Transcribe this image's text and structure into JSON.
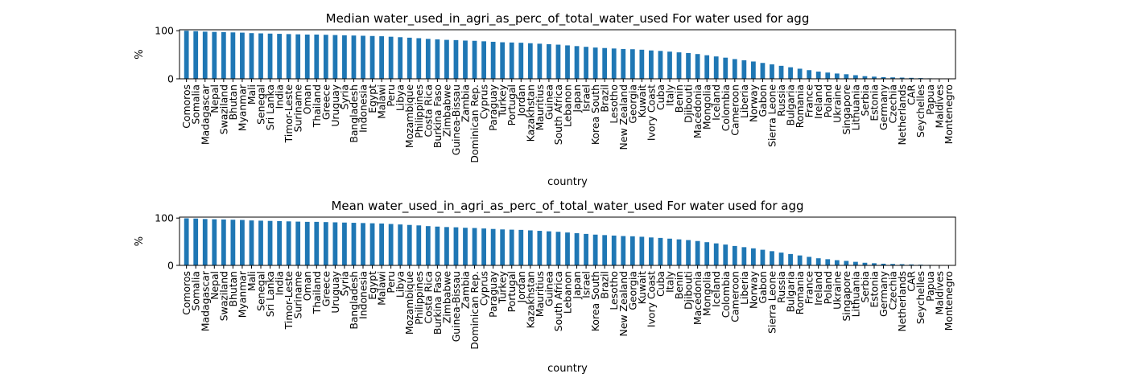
{
  "chart_data": [
    {
      "type": "bar",
      "title": "Median water_used_in_agri_as_perc_of_total_water_used For water used for agg",
      "xlabel": "country",
      "ylabel": "%",
      "ylim": [
        0,
        102
      ],
      "yticks": [
        0,
        100
      ],
      "legend": "none",
      "grid": false,
      "bar_color": "#1f77b4",
      "categories": [
        "Comoros",
        "Somalia",
        "Madagascar",
        "Nepal",
        "Swaziland",
        "Bhutan",
        "Myanmar",
        "Mali",
        "Senegal",
        "Sri Lanka",
        "India",
        "Timor-Leste",
        "Suriname",
        "Oman",
        "Thailand",
        "Greece",
        "Uruguay",
        "Syria",
        "Bangladesh",
        "Indonesia",
        "Egypt",
        "Malawi",
        "Peru",
        "Libya",
        "Mozambique",
        "Philippines",
        "Costa Rica",
        "Burkina Faso",
        "Zimbabwe",
        "Guinea-Bissau",
        "Zambia",
        "Dominican Rep.",
        "Cyprus",
        "Paraguay",
        "Turkey",
        "Portugal",
        "Jordan",
        "Kazakhstan",
        "Mauritius",
        "Guinea",
        "South Africa",
        "Lebanon",
        "Japan",
        "Israel",
        "Korea South",
        "Brazil",
        "Lesotho",
        "New Zealand",
        "Georgia",
        "Kuwait",
        "Ivory Coast",
        "Cuba",
        "Italy",
        "Benin",
        "Djibouti",
        "Macedonia",
        "Mongolia",
        "Iceland",
        "Colombia",
        "Cameroon",
        "Liberia",
        "Norway",
        "Gabon",
        "Sierra Leone",
        "Russia",
        "Bulgaria",
        "Romania",
        "France",
        "Ireland",
        "Poland",
        "Ukraine",
        "Singapore",
        "Lithuania",
        "Serbia",
        "Estonia",
        "Germany",
        "Czechia",
        "Netherlands",
        "CAR",
        "Seychelles",
        "Papua",
        "Maldives",
        "Montenegro"
      ],
      "values": [
        100,
        99,
        98,
        97.5,
        97,
        96.5,
        96,
        95,
        94.5,
        94,
        93.5,
        93,
        92.5,
        92,
        92,
        91.5,
        91,
        90.5,
        90,
        89.5,
        89,
        88.5,
        87.5,
        86.5,
        85.5,
        84.5,
        83,
        82,
        81,
        80.5,
        79.5,
        79,
        78,
        77,
        76,
        75.5,
        75,
        74,
        73,
        72,
        71,
        69.5,
        68,
        66.5,
        65,
        64,
        63,
        62,
        61.5,
        60.5,
        59,
        58,
        56.5,
        55,
        53.5,
        51.5,
        49,
        46.5,
        44,
        41,
        38.5,
        36,
        33,
        30,
        27,
        24,
        21,
        18,
        15,
        13,
        11,
        9.5,
        7.5,
        5.5,
        4.5,
        3.5,
        3,
        2.5,
        2,
        1.5,
        1,
        0.5,
        0.2
      ]
    },
    {
      "type": "bar",
      "title": "Mean water_used_in_agri_as_perc_of_total_water_used For water used for agg",
      "xlabel": "country",
      "ylabel": "%",
      "ylim": [
        0,
        102
      ],
      "yticks": [
        0,
        100
      ],
      "legend": "none",
      "grid": false,
      "bar_color": "#1f77b4",
      "categories": [
        "Comoros",
        "Somalia",
        "Madagascar",
        "Nepal",
        "Swaziland",
        "Bhutan",
        "Myanmar",
        "Mali",
        "Senegal",
        "Sri Lanka",
        "India",
        "Timor-Leste",
        "Suriname",
        "Oman",
        "Thailand",
        "Greece",
        "Uruguay",
        "Syria",
        "Bangladesh",
        "Indonesia",
        "Egypt",
        "Malawi",
        "Peru",
        "Libya",
        "Mozambique",
        "Philippines",
        "Costa Rica",
        "Burkina Faso",
        "Zimbabwe",
        "Guinea-Bissau",
        "Zambia",
        "Dominican Rep.",
        "Cyprus",
        "Paraguay",
        "Turkey",
        "Portugal",
        "Jordan",
        "Kazakhstan",
        "Mauritius",
        "Guinea",
        "South Africa",
        "Lebanon",
        "Japan",
        "Israel",
        "Korea South",
        "Brazil",
        "Lesotho",
        "New Zealand",
        "Georgia",
        "Kuwait",
        "Ivory Coast",
        "Cuba",
        "Italy",
        "Benin",
        "Djibouti",
        "Macedonia",
        "Mongolia",
        "Iceland",
        "Colombia",
        "Cameroon",
        "Liberia",
        "Norway",
        "Gabon",
        "Sierra Leone",
        "Russia",
        "Bulgaria",
        "Romania",
        "France",
        "Ireland",
        "Poland",
        "Ukraine",
        "Singapore",
        "Lithuania",
        "Serbia",
        "Estonia",
        "Germany",
        "Czechia",
        "Netherlands",
        "CAR",
        "Seychelles",
        "Papua",
        "Maldives",
        "Montenegro"
      ],
      "values": [
        99.5,
        99,
        98,
        97.5,
        97,
        96.5,
        96,
        95,
        94.5,
        94,
        93.5,
        93,
        92.5,
        92,
        92,
        91.5,
        91,
        90.5,
        90,
        89.5,
        89,
        88.5,
        87.5,
        86.5,
        85.5,
        84.5,
        83,
        82,
        81,
        80.5,
        79.5,
        79,
        78,
        77,
        76,
        75.5,
        75,
        74,
        73,
        72,
        71,
        69.5,
        68,
        66.5,
        65,
        64,
        63,
        62,
        61.5,
        60.5,
        59,
        58,
        56.5,
        55,
        53.5,
        51.5,
        49,
        46.5,
        44,
        41,
        38.5,
        36,
        33,
        30,
        27,
        24,
        21,
        18,
        15,
        13,
        11,
        9.5,
        7.5,
        5.5,
        4.5,
        3.5,
        3,
        2.5,
        2,
        1.5,
        1,
        0.5,
        0.2
      ]
    }
  ]
}
